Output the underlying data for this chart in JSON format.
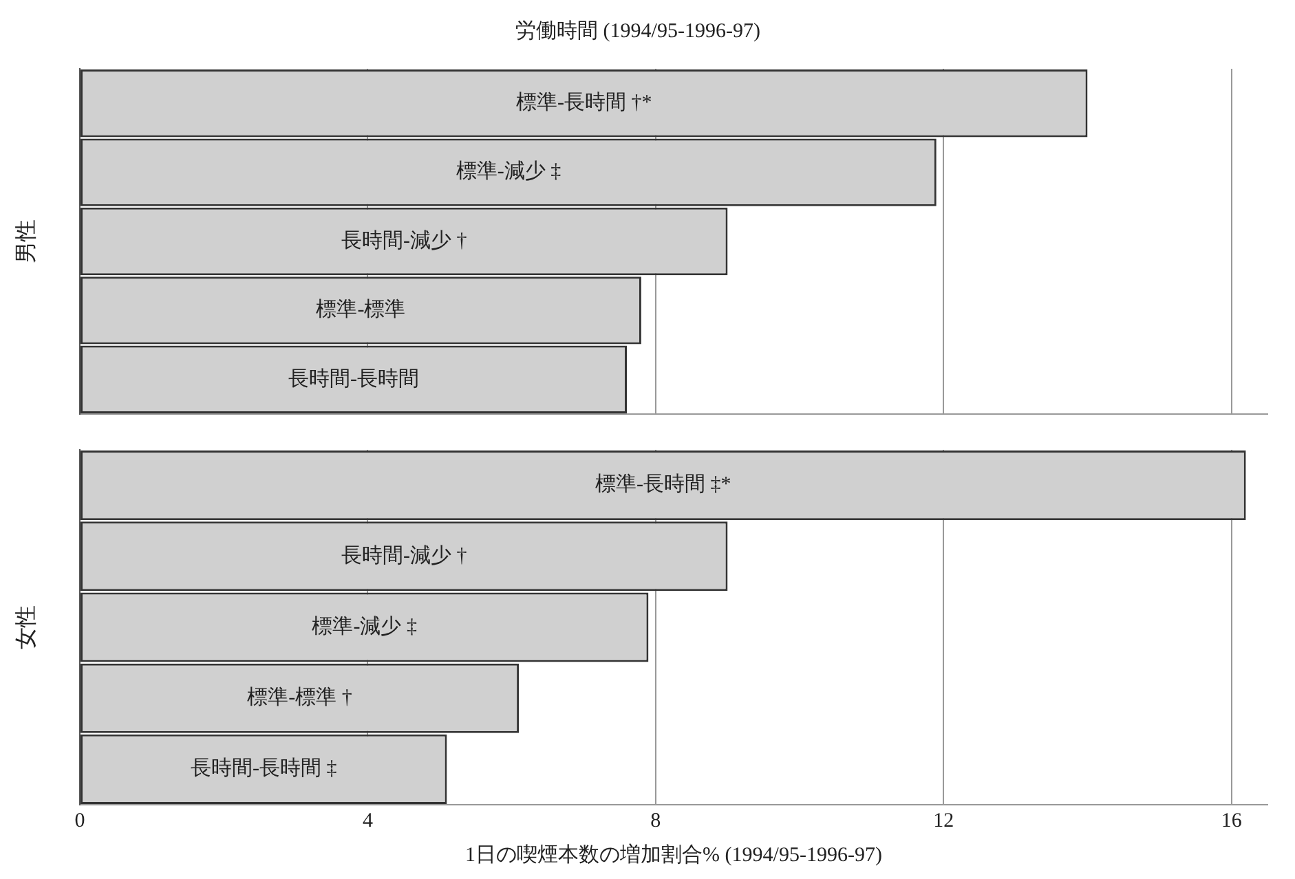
{
  "chart_data": [
    {
      "type": "bar",
      "orientation": "horizontal",
      "title": "労働時間 (1994/95-1996-97)",
      "ylabel": "男性",
      "categories": [
        "標準-長時間 †*",
        "標準-減少 ‡",
        "長時間-減少 †",
        "標準-標準",
        "長時間-長時間"
      ],
      "values": [
        14.0,
        11.9,
        9.0,
        7.8,
        7.6
      ],
      "color": "#d0d0d0",
      "xlim": [
        0,
        16.5
      ],
      "xticks": [
        0,
        4,
        8,
        12,
        16
      ],
      "grid": "x",
      "tick_labels": "y"
    },
    {
      "type": "bar",
      "orientation": "horizontal",
      "ylabel": "女性",
      "xlabel": "1日の喫煙本数の増加割合% (1994/95-1996-97)",
      "categories": [
        "標準-長時間 ‡*",
        "長時間-減少 †",
        "標準-減少 ‡",
        "標準-標準 †",
        "長時間-長時間 ‡"
      ],
      "values": [
        16.2,
        9.0,
        7.9,
        6.1,
        5.1
      ],
      "color": "#d0d0d0",
      "xlim": [
        0,
        16.5
      ],
      "xticks": [
        0,
        4,
        8,
        12,
        16
      ],
      "grid": "x"
    }
  ]
}
